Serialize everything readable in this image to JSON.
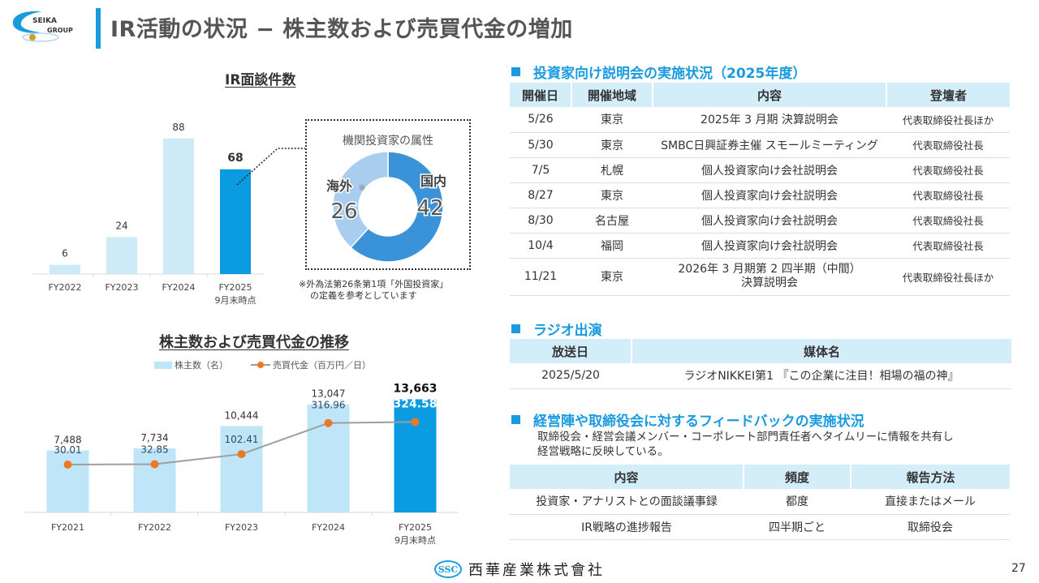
{
  "header": {
    "logo_line1": "SEIKA",
    "logo_line2": "GROUP",
    "title": "IR活動の状況 − 株主数および売買代金の増加"
  },
  "colors": {
    "accent": "#1a9be0",
    "bar_light": "#cdeaf7",
    "bar_highlight": "#0b9be0",
    "bar2_light": "#bfe6f8",
    "line_gray": "#9e9e9e",
    "marker_orange": "#ee7722",
    "donut_domestic": "#3a93d8",
    "donut_overseas": "#a8cdee",
    "table_header_bg": "#d3eef9"
  },
  "chart_data": [
    {
      "type": "bar",
      "title": "IR面談件数",
      "categories": [
        "FY2022",
        "FY2023",
        "FY2024",
        "FY2025"
      ],
      "category_sublabels": [
        "",
        "",
        "",
        "9月末時点"
      ],
      "values": [
        6,
        24,
        88,
        68
      ],
      "highlight_index": 3,
      "xlabel": "",
      "ylabel": "",
      "ylim": [
        0,
        100
      ],
      "grid": false
    },
    {
      "type": "pie",
      "title": "機関投資家の属性",
      "donut": true,
      "slices": [
        {
          "label": "国内",
          "value": 42
        },
        {
          "label": "海外",
          "label_suffix": "※",
          "value": 26
        }
      ],
      "note_lines": [
        "※外為法第26条第1項「外国投資家」",
        "の定義を参考としています"
      ]
    },
    {
      "type": "bar",
      "title": "株主数および売買代金の推移",
      "categories": [
        "FY2021",
        "FY2022",
        "FY2023",
        "FY2024",
        "FY2025"
      ],
      "category_sublabels": [
        "",
        "",
        "",
        "",
        "9月末時点"
      ],
      "series": [
        {
          "name": "株主数（名）",
          "kind": "bar",
          "values": [
            7488,
            7734,
            10444,
            13047,
            13663
          ],
          "labels": [
            "7,488",
            "7,734",
            "10,444",
            "13,047",
            "13,663"
          ]
        },
        {
          "name": "売買代金（百万円／日）",
          "kind": "line",
          "values": [
            30.01,
            32.85,
            102.41,
            316.96,
            324.58
          ],
          "labels": [
            "30.01",
            "32.85",
            "102.41",
            "316.96",
            "324.58"
          ]
        }
      ],
      "highlight_index": 4,
      "bar_ylim": [
        0,
        14000
      ],
      "line_ylim": [
        -300,
        500
      ],
      "legend": "top-center",
      "grid": false
    }
  ],
  "briefings": {
    "heading": "投資家向け説明会の実施状況（2025年度）",
    "columns": [
      "開催日",
      "開催地域",
      "内容",
      "登壇者"
    ],
    "rows": [
      [
        "5/26",
        "東京",
        "2025年 3 月期 決算説明会",
        "代表取締役社長ほか"
      ],
      [
        "5/30",
        "東京",
        "SMBC日興証券主催 スモールミーティング",
        "代表取締役社長"
      ],
      [
        "7/5",
        "札幌",
        "個人投資家向け会社説明会",
        "代表取締役社長"
      ],
      [
        "8/27",
        "東京",
        "個人投資家向け会社説明会",
        "代表取締役社長"
      ],
      [
        "8/30",
        "名古屋",
        "個人投資家向け会社説明会",
        "代表取締役社長"
      ],
      [
        "10/4",
        "福岡",
        "個人投資家向け会社説明会",
        "代表取締役社長"
      ],
      [
        "11/21",
        "東京",
        "2026年 3 月期第 2 四半期（中間）\n決算説明会",
        "代表取締役社長ほか"
      ]
    ]
  },
  "radio": {
    "heading": "ラジオ出演",
    "columns": [
      "放送日",
      "媒体名"
    ],
    "rows": [
      [
        "2025/5/20",
        "ラジオNIKKEI第1 『この企業に注目！相場の福の神』"
      ]
    ]
  },
  "feedback": {
    "heading": "経営陣や取締役会に対するフィードバックの実施状況",
    "description_line1": "取締役会・経営会議メンバー・コーポレート部門責任者へタイムリーに情報を共有し",
    "description_line2": "経営戦略に反映している。",
    "columns": [
      "内容",
      "頻度",
      "報告方法"
    ],
    "rows": [
      [
        "投資家・アナリストとの面談議事録",
        "都度",
        "直接またはメール"
      ],
      [
        "IR戦略の進捗報告",
        "四半期ごと",
        "取締役会"
      ]
    ]
  },
  "footer": {
    "logo_mark": "SSC",
    "company_name": "西華産業株式會社",
    "page_number": "27"
  }
}
